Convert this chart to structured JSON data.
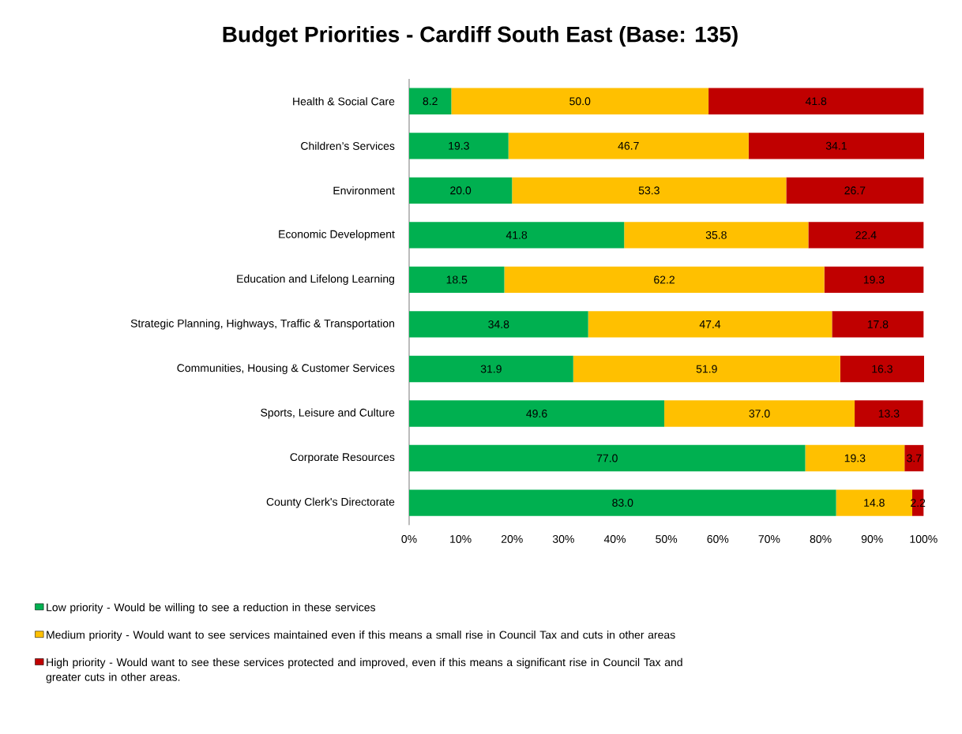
{
  "chart_data": {
    "type": "bar",
    "orientation": "horizontal",
    "stacked": true,
    "title": "Budget Priorities - Cardiff South East (Base: 135)",
    "categories": [
      "Health & Social Care",
      "Children’s Services",
      "Environment",
      "Economic Development",
      "Education and Lifelong Learning",
      "Strategic Planning, Highways, Traffic & Transportation",
      "Communities, Housing & Customer Services",
      "Sports, Leisure and Culture",
      "Corporate Resources",
      "County Clerk's Directorate"
    ],
    "series": [
      {
        "name": "Low priority - Would be willing to see a reduction in these services",
        "color": "#00b050",
        "values": [
          8.2,
          19.3,
          20.0,
          41.8,
          18.5,
          34.8,
          31.9,
          49.6,
          77.0,
          83.0
        ],
        "value_labels": [
          "8.2",
          "19.3",
          "20.0",
          "41.8",
          "18.5",
          "34.8",
          "31.9",
          "49.6",
          "77.0",
          "83.0"
        ]
      },
      {
        "name": "Medium priority - Would want to see services maintained even if this means a small rise in Council Tax and cuts in other areas",
        "color": "#ffc000",
        "values": [
          50.0,
          46.7,
          53.3,
          35.8,
          62.2,
          47.4,
          51.9,
          37.0,
          19.3,
          14.8
        ],
        "value_labels": [
          "50.0",
          "46.7",
          "53.3",
          "35.8",
          "62.2",
          "47.4",
          "51.9",
          "37.0",
          "19.3",
          "14.8"
        ]
      },
      {
        "name": "High priority - Would want to see these services protected and improved, even if this means a significant rise in Council Tax and greater cuts in other areas.",
        "color": "#c00000",
        "values": [
          41.8,
          34.1,
          26.7,
          22.4,
          19.3,
          17.8,
          16.3,
          13.3,
          3.7,
          2.2
        ],
        "value_labels": [
          "41.8",
          "34.1",
          "26.7",
          "22.4",
          "19.3",
          "17.8",
          "16.3",
          "13.3",
          "3.7",
          "2.2"
        ]
      }
    ],
    "xlim": [
      0,
      100
    ],
    "xticks": [
      {
        "value": 0,
        "label": "0%"
      },
      {
        "value": 10,
        "label": "10%"
      },
      {
        "value": 20,
        "label": "20%"
      },
      {
        "value": 30,
        "label": "30%"
      },
      {
        "value": 40,
        "label": "40%"
      },
      {
        "value": 50,
        "label": "50%"
      },
      {
        "value": 60,
        "label": "60%"
      },
      {
        "value": 70,
        "label": "70%"
      },
      {
        "value": 80,
        "label": "80%"
      },
      {
        "value": 90,
        "label": "90%"
      },
      {
        "value": 100,
        "label": "100%"
      }
    ],
    "legend": "bottom"
  }
}
